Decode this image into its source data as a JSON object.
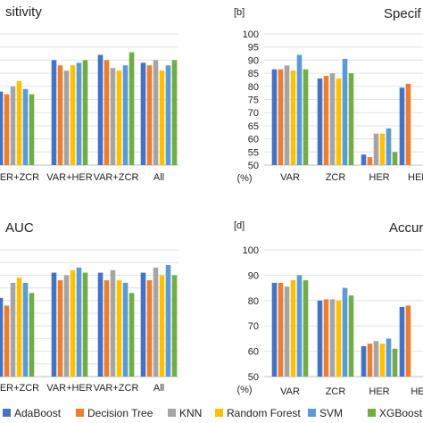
{
  "legend": {
    "items": [
      {
        "label": "AdaBoost",
        "color": "#4472C4"
      },
      {
        "label": "Decision Tree",
        "color": "#ED7D31"
      },
      {
        "label": "KNN",
        "color": "#A5A5A5"
      },
      {
        "label": "Random Forest",
        "color": "#FFC000"
      },
      {
        "label": "SVM",
        "color": "#5B9BD5"
      },
      {
        "label": "XGBoost",
        "color": "#70AD47"
      }
    ]
  },
  "chart_data": [
    {
      "type": "bar",
      "title": "sitivity",
      "tag": "",
      "categories": [
        "HER+ZCR",
        "VAR+HER",
        "VAR+ZCR",
        "All"
      ],
      "ylim": [
        50,
        100
      ],
      "series": [
        {
          "name": "AdaBoost",
          "values": [
            78,
            90,
            92,
            89
          ]
        },
        {
          "name": "Decision Tree",
          "values": [
            77,
            88,
            90,
            88
          ]
        },
        {
          "name": "KNN",
          "values": [
            80,
            86,
            87,
            90
          ]
        },
        {
          "name": "Random Forest",
          "values": [
            82,
            88,
            86,
            86
          ]
        },
        {
          "name": "SVM",
          "values": [
            79,
            89,
            88,
            88
          ]
        },
        {
          "name": "XGBoost",
          "values": [
            77,
            90,
            93,
            90
          ]
        }
      ]
    },
    {
      "type": "bar",
      "title": "Specif",
      "tag": "[b]",
      "ylabel": "(%)",
      "categories": [
        "VAR",
        "ZCR",
        "HER",
        "HEF"
      ],
      "yticks": [
        "50",
        "55",
        "60",
        "65",
        "70",
        "75",
        "80",
        "85",
        "90",
        "95",
        "100"
      ],
      "ylim": [
        50,
        100
      ],
      "series": [
        {
          "name": "AdaBoost",
          "values": [
            86.5,
            83,
            54,
            79.5
          ]
        },
        {
          "name": "Decision Tree",
          "values": [
            86.5,
            84,
            53,
            81
          ]
        },
        {
          "name": "KNN",
          "values": [
            88,
            85,
            62,
            null
          ]
        },
        {
          "name": "Random Forest",
          "values": [
            86,
            83,
            62,
            null
          ]
        },
        {
          "name": "SVM",
          "values": [
            92,
            90.5,
            64,
            null
          ]
        },
        {
          "name": "XGBoost",
          "values": [
            86.5,
            85,
            55,
            null
          ]
        }
      ]
    },
    {
      "type": "bar",
      "title": "AUC",
      "tag": "",
      "categories": [
        "HER+ZCR",
        "VAR+HER",
        "VAR+ZCR",
        "All"
      ],
      "ylim": [
        50,
        100
      ],
      "series": [
        {
          "name": "AdaBoost",
          "values": [
            81,
            91,
            91,
            91
          ]
        },
        {
          "name": "Decision Tree",
          "values": [
            78,
            88,
            88,
            88
          ]
        },
        {
          "name": "KNN",
          "values": [
            87,
            90,
            92,
            93
          ]
        },
        {
          "name": "Random Forest",
          "values": [
            89,
            92,
            88,
            90
          ]
        },
        {
          "name": "SVM",
          "values": [
            87,
            93,
            87,
            94
          ]
        },
        {
          "name": "XGBoost",
          "values": [
            83,
            91,
            83,
            90
          ]
        }
      ]
    },
    {
      "type": "bar",
      "title": "Accur",
      "tag": "[d]",
      "ylabel": "(%)",
      "categories": [
        "VAR",
        "ZCR",
        "HER",
        "HE"
      ],
      "yticks": [
        "50",
        "60",
        "70",
        "80",
        "90",
        "100"
      ],
      "ylim": [
        50,
        100
      ],
      "series": [
        {
          "name": "AdaBoost",
          "values": [
            87,
            80,
            62,
            77.5
          ]
        },
        {
          "name": "Decision Tree",
          "values": [
            87,
            80.5,
            63,
            78
          ]
        },
        {
          "name": "KNN",
          "values": [
            85.5,
            80.5,
            64,
            null
          ]
        },
        {
          "name": "Random Forest",
          "values": [
            88,
            80,
            63,
            null
          ]
        },
        {
          "name": "SVM",
          "values": [
            90,
            85,
            65,
            null
          ]
        },
        {
          "name": "XGBoost",
          "values": [
            88,
            82,
            61,
            null
          ]
        }
      ]
    }
  ]
}
